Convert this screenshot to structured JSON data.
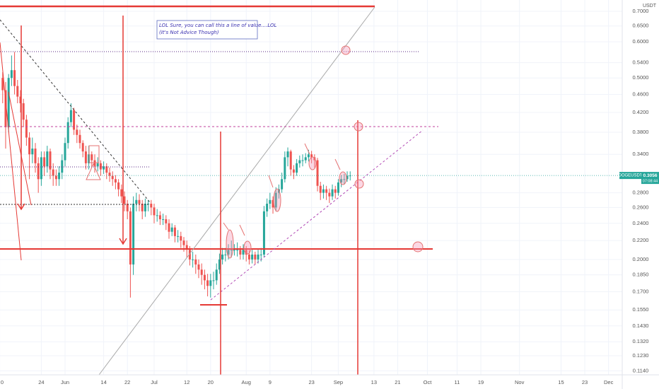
{
  "chart_data": {
    "type": "candlestick",
    "symbol": "DOGEUSDT",
    "quote_currency": "USDT",
    "note": [
      "LOL Sure, you can call this a line of value....LOL",
      "(It's Not Advice Though)"
    ],
    "countdown": "07:08:44",
    "last_price": 0.3056,
    "scale": "log",
    "grid": true,
    "up_color": "#26a69a",
    "down_color": "#ef5350",
    "xlim": [
      -21.9,
      187.6
    ],
    "ylim": [
      0.1117,
      0.741
    ],
    "xticks": [
      {
        "value": -22,
        "label": "0"
      },
      {
        "value": -8,
        "label": "24"
      },
      {
        "value": 0,
        "label": "Jun"
      },
      {
        "value": 13,
        "label": "14"
      },
      {
        "value": 21,
        "label": "22"
      },
      {
        "value": 30,
        "label": "Jul"
      },
      {
        "value": 41,
        "label": "12"
      },
      {
        "value": 49,
        "label": "20"
      },
      {
        "value": 61,
        "label": "Aug"
      },
      {
        "value": 69,
        "label": "9"
      },
      {
        "value": 83,
        "label": "23"
      },
      {
        "value": 92,
        "label": "Sep"
      },
      {
        "value": 104,
        "label": "13"
      },
      {
        "value": 112,
        "label": "21"
      },
      {
        "value": 122,
        "label": "Oct"
      },
      {
        "value": 132,
        "label": "11"
      },
      {
        "value": 140,
        "label": "19"
      },
      {
        "value": 153,
        "label": "Nov"
      },
      {
        "value": 167,
        "label": "15"
      },
      {
        "value": 175,
        "label": "23"
      },
      {
        "value": 183,
        "label": "Dec"
      }
    ],
    "yticks": [
      {
        "value": 0.7,
        "label": "0.7000"
      },
      {
        "value": 0.65,
        "label": "0.6500"
      },
      {
        "value": 0.6,
        "label": "0.6000"
      },
      {
        "value": 0.54,
        "label": "0.5400"
      },
      {
        "value": 0.5,
        "label": "0.5000"
      },
      {
        "value": 0.46,
        "label": "0.4600"
      },
      {
        "value": 0.42,
        "label": "0.4200"
      },
      {
        "value": 0.38,
        "label": "0.3800"
      },
      {
        "value": 0.34,
        "label": "0.3400"
      },
      {
        "value": 0.28,
        "label": "0.2800"
      },
      {
        "value": 0.26,
        "label": "0.2600"
      },
      {
        "value": 0.24,
        "label": "0.2400"
      },
      {
        "value": 0.22,
        "label": "0.2200"
      },
      {
        "value": 0.2,
        "label": "0.2000"
      },
      {
        "value": 0.185,
        "label": "0.1850"
      },
      {
        "value": 0.17,
        "label": "0.1700"
      },
      {
        "value": 0.155,
        "label": "0.1550"
      },
      {
        "value": 0.143,
        "label": "0.1430"
      },
      {
        "value": 0.132,
        "label": "0.1320"
      },
      {
        "value": 0.123,
        "label": "0.1230"
      },
      {
        "value": 0.114,
        "label": "0.1140"
      }
    ],
    "x": [
      -21,
      -20,
      -19,
      -18,
      -17,
      -16,
      -15,
      -14,
      -13,
      -12,
      -11,
      -10,
      -9,
      -8,
      -7,
      -6,
      -5,
      -4,
      -3,
      -2,
      -1,
      0,
      1,
      2,
      3,
      4,
      5,
      6,
      7,
      8,
      9,
      10,
      11,
      12,
      13,
      14,
      15,
      16,
      17,
      18,
      19,
      20,
      21,
      22,
      23,
      24,
      25,
      26,
      27,
      28,
      29,
      30,
      31,
      32,
      33,
      34,
      35,
      36,
      37,
      38,
      39,
      40,
      41,
      42,
      43,
      44,
      45,
      46,
      47,
      48,
      49,
      50,
      51,
      52,
      53,
      54,
      55,
      56,
      57,
      58,
      59,
      60,
      61,
      62,
      63,
      64,
      65,
      66,
      67,
      68,
      69,
      70,
      71,
      72,
      73,
      74,
      75,
      76,
      77,
      78,
      79,
      80,
      81,
      82,
      83,
      84,
      85,
      86,
      87,
      88,
      89,
      90,
      91,
      92,
      93,
      94,
      95,
      96
    ],
    "open": [
      0.5,
      0.47,
      0.39,
      0.5,
      0.52,
      0.48,
      0.455,
      0.44,
      0.405,
      0.37,
      0.34,
      0.35,
      0.325,
      0.3,
      0.335,
      0.32,
      0.345,
      0.315,
      0.305,
      0.3,
      0.31,
      0.33,
      0.36,
      0.4,
      0.425,
      0.385,
      0.375,
      0.36,
      0.345,
      0.325,
      0.34,
      0.33,
      0.32,
      0.325,
      0.315,
      0.32,
      0.31,
      0.305,
      0.3,
      0.295,
      0.285,
      0.275,
      0.265,
      0.255,
      0.195,
      0.265,
      0.27,
      0.265,
      0.255,
      0.265,
      0.265,
      0.26,
      0.25,
      0.25,
      0.245,
      0.245,
      0.24,
      0.23,
      0.235,
      0.225,
      0.225,
      0.22,
      0.215,
      0.21,
      0.2,
      0.2,
      0.195,
      0.19,
      0.185,
      0.18,
      0.175,
      0.18,
      0.18,
      0.19,
      0.2,
      0.205,
      0.205,
      0.21,
      0.21,
      0.21,
      0.21,
      0.205,
      0.21,
      0.205,
      0.2,
      0.205,
      0.2,
      0.205,
      0.205,
      0.255,
      0.265,
      0.27,
      0.26,
      0.28,
      0.285,
      0.3,
      0.335,
      0.345,
      0.315,
      0.31,
      0.325,
      0.33,
      0.33,
      0.335,
      0.34,
      0.335,
      0.33,
      0.29,
      0.28,
      0.285,
      0.28,
      0.275,
      0.285,
      0.28,
      0.295,
      0.3,
      0.3,
      0.305
    ],
    "high": [
      0.515,
      0.49,
      0.51,
      0.56,
      0.57,
      0.495,
      0.47,
      0.45,
      0.415,
      0.38,
      0.37,
      0.36,
      0.335,
      0.345,
      0.345,
      0.355,
      0.35,
      0.325,
      0.315,
      0.32,
      0.34,
      0.37,
      0.41,
      0.44,
      0.43,
      0.395,
      0.385,
      0.365,
      0.355,
      0.355,
      0.345,
      0.34,
      0.335,
      0.33,
      0.328,
      0.325,
      0.318,
      0.312,
      0.306,
      0.3,
      0.292,
      0.282,
      0.27,
      0.26,
      0.275,
      0.28,
      0.278,
      0.27,
      0.272,
      0.27,
      0.27,
      0.265,
      0.258,
      0.255,
      0.252,
      0.25,
      0.245,
      0.24,
      0.238,
      0.232,
      0.23,
      0.224,
      0.22,
      0.214,
      0.208,
      0.205,
      0.2,
      0.196,
      0.19,
      0.186,
      0.186,
      0.188,
      0.196,
      0.206,
      0.212,
      0.212,
      0.216,
      0.22,
      0.216,
      0.218,
      0.214,
      0.216,
      0.214,
      0.21,
      0.21,
      0.208,
      0.21,
      0.212,
      0.262,
      0.272,
      0.28,
      0.275,
      0.288,
      0.292,
      0.31,
      0.345,
      0.352,
      0.348,
      0.322,
      0.332,
      0.338,
      0.34,
      0.342,
      0.348,
      0.346,
      0.34,
      0.334,
      0.296,
      0.292,
      0.29,
      0.286,
      0.292,
      0.29,
      0.3,
      0.306,
      0.308,
      0.312,
      0.312
    ],
    "low": [
      0.44,
      0.35,
      0.38,
      0.48,
      0.46,
      0.44,
      0.42,
      0.39,
      0.355,
      0.3,
      0.325,
      0.31,
      0.28,
      0.29,
      0.305,
      0.31,
      0.3,
      0.29,
      0.29,
      0.29,
      0.3,
      0.32,
      0.35,
      0.39,
      0.375,
      0.36,
      0.35,
      0.335,
      0.315,
      0.315,
      0.32,
      0.31,
      0.312,
      0.305,
      0.308,
      0.3,
      0.296,
      0.29,
      0.285,
      0.275,
      0.266,
      0.255,
      0.245,
      0.165,
      0.185,
      0.255,
      0.255,
      0.245,
      0.248,
      0.255,
      0.25,
      0.24,
      0.242,
      0.238,
      0.238,
      0.232,
      0.222,
      0.225,
      0.218,
      0.218,
      0.212,
      0.208,
      0.202,
      0.194,
      0.192,
      0.186,
      0.182,
      0.176,
      0.172,
      0.166,
      0.165,
      0.172,
      0.176,
      0.186,
      0.195,
      0.198,
      0.2,
      0.202,
      0.204,
      0.203,
      0.2,
      0.2,
      0.198,
      0.195,
      0.196,
      0.195,
      0.196,
      0.198,
      0.202,
      0.248,
      0.258,
      0.252,
      0.255,
      0.272,
      0.28,
      0.295,
      0.32,
      0.305,
      0.3,
      0.305,
      0.318,
      0.32,
      0.325,
      0.328,
      0.325,
      0.318,
      0.282,
      0.27,
      0.272,
      0.27,
      0.266,
      0.27,
      0.272,
      0.276,
      0.288,
      0.292,
      0.296,
      0.298
    ],
    "close": [
      0.47,
      0.39,
      0.5,
      0.52,
      0.48,
      0.455,
      0.44,
      0.405,
      0.37,
      0.34,
      0.35,
      0.325,
      0.3,
      0.335,
      0.32,
      0.345,
      0.315,
      0.305,
      0.3,
      0.31,
      0.33,
      0.36,
      0.4,
      0.425,
      0.385,
      0.375,
      0.36,
      0.345,
      0.325,
      0.34,
      0.33,
      0.32,
      0.325,
      0.315,
      0.32,
      0.31,
      0.305,
      0.3,
      0.295,
      0.285,
      0.275,
      0.265,
      0.255,
      0.195,
      0.265,
      0.27,
      0.265,
      0.255,
      0.265,
      0.265,
      0.26,
      0.25,
      0.25,
      0.245,
      0.245,
      0.24,
      0.23,
      0.235,
      0.225,
      0.225,
      0.22,
      0.215,
      0.21,
      0.2,
      0.2,
      0.195,
      0.19,
      0.185,
      0.18,
      0.175,
      0.18,
      0.18,
      0.19,
      0.2,
      0.205,
      0.205,
      0.21,
      0.21,
      0.21,
      0.21,
      0.205,
      0.21,
      0.205,
      0.2,
      0.205,
      0.2,
      0.205,
      0.205,
      0.255,
      0.265,
      0.27,
      0.26,
      0.28,
      0.285,
      0.3,
      0.335,
      0.345,
      0.315,
      0.31,
      0.325,
      0.33,
      0.33,
      0.335,
      0.34,
      0.335,
      0.33,
      0.29,
      0.28,
      0.285,
      0.28,
      0.275,
      0.285,
      0.28,
      0.295,
      0.3,
      0.3,
      0.305,
      0.3056
    ]
  }
}
